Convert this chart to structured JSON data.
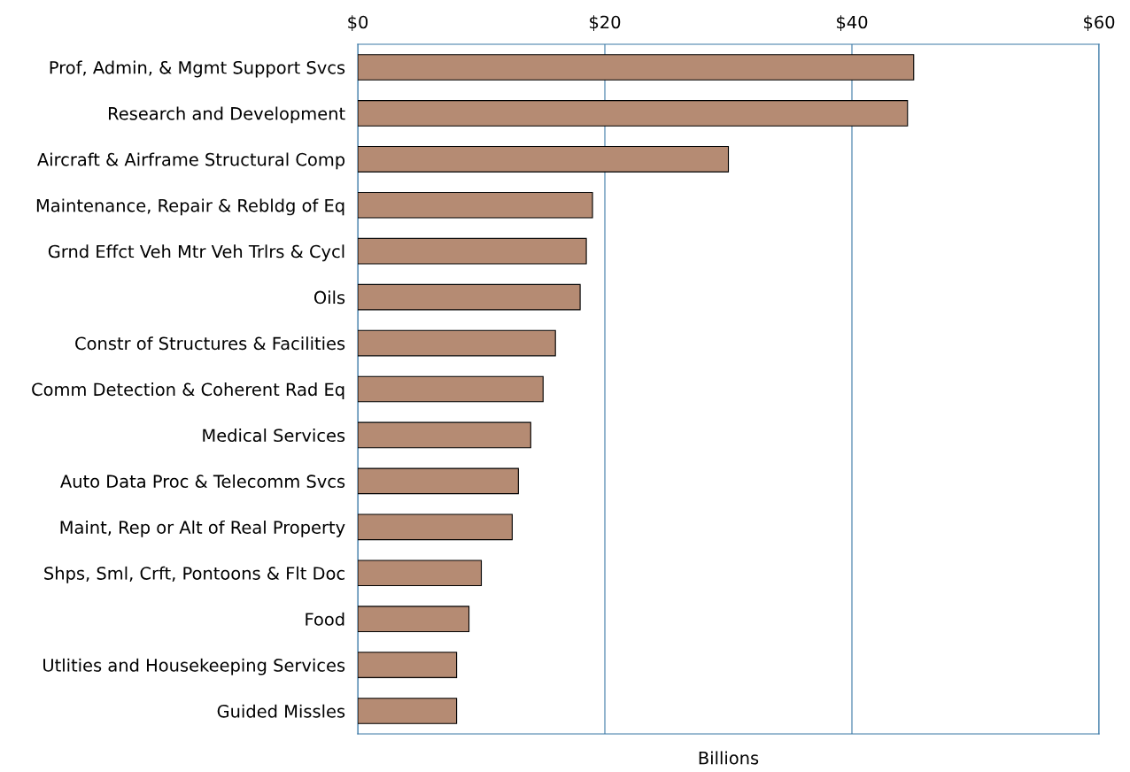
{
  "chart_data": {
    "type": "bar",
    "orientation": "horizontal",
    "xlabel": "Billions",
    "categories": [
      "Prof, Admin, & Mgmt Support Svcs",
      "Research and Development",
      "Aircraft & Airframe Structural Comp",
      "Maintenance, Repair & Rebldg of Eq",
      "Grnd Effct Veh Mtr Veh Trlrs & Cycl",
      "Oils",
      "Constr of Structures & Facilities",
      "Comm Detection & Coherent Rad Eq",
      "Medical Services",
      "Auto Data Proc & Telecomm Svcs",
      "Maint, Rep or Alt of Real Property",
      "Shps, Sml, Crft, Pontoons & Flt Doc",
      "Food",
      "Utlities and Housekeeping Services",
      "Guided Missles"
    ],
    "values": [
      45.0,
      44.5,
      30.0,
      19.0,
      18.5,
      18.0,
      16.0,
      15.0,
      14.0,
      13.0,
      12.5,
      10.0,
      9.0,
      8.0,
      8.0
    ],
    "color": "#b58b73",
    "xlim": [
      0,
      60
    ],
    "xticks": [
      {
        "value": 0,
        "label": "$0"
      },
      {
        "value": 20,
        "label": "$20"
      },
      {
        "value": 40,
        "label": "$40"
      },
      {
        "value": 60,
        "label": "$60"
      }
    ],
    "grid": "x",
    "legend": false
  }
}
